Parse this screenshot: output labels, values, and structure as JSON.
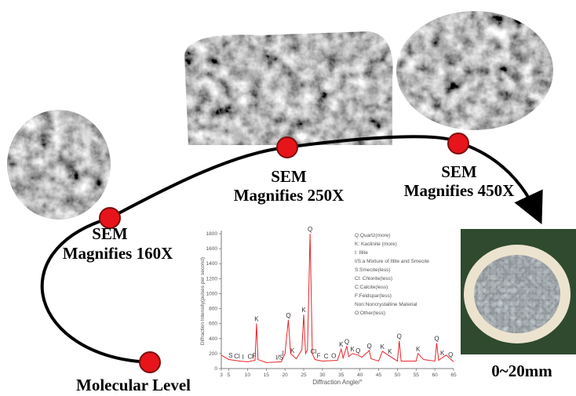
{
  "labels": {
    "sem160": {
      "line1": "SEM",
      "line2": "Magnifies 160X"
    },
    "sem250": {
      "line1": "SEM",
      "line2": "Magnifies 250X"
    },
    "sem450": {
      "line1": "SEM",
      "line2": "Magnifies 450X"
    },
    "molecular": "Molecular Level",
    "size": "0~20mm"
  },
  "xrd": {
    "type": "line",
    "y_label": "Diffraction Intensity(pulses per second)",
    "x_label": "Diffraction Angle/°",
    "xlim": [
      3,
      65
    ],
    "ylim": [
      0,
      1800
    ],
    "xticks": [
      3,
      5,
      10,
      15,
      20,
      25,
      30,
      35,
      40,
      45,
      50,
      55,
      60,
      65
    ],
    "yticks": [
      0,
      200,
      400,
      600,
      800,
      1000,
      1200,
      1400,
      1600,
      1800
    ],
    "color": "#e8252b",
    "line": {
      "x": [
        3,
        5,
        8,
        10,
        12,
        12.4,
        12.8,
        15,
        19,
        20,
        20.9,
        21.5,
        23,
        24.5,
        25,
        25.5,
        26,
        26.7,
        27.3,
        28,
        30,
        34,
        35,
        35.5,
        36.5,
        37,
        38,
        39.5,
        40.5,
        42.5,
        43,
        45,
        46,
        50,
        50.5,
        51,
        55,
        55.5,
        57,
        60,
        60.5,
        61,
        63,
        65
      ],
      "y": [
        180,
        120,
        100,
        90,
        110,
        600,
        120,
        80,
        90,
        200,
        650,
        200,
        130,
        250,
        720,
        200,
        250,
        1800,
        200,
        120,
        100,
        110,
        260,
        140,
        300,
        160,
        200,
        180,
        150,
        240,
        130,
        100,
        230,
        100,
        370,
        100,
        100,
        200,
        120,
        100,
        340,
        110,
        180,
        90
      ]
    },
    "peaks": [
      {
        "label": "S",
        "x": 5.5
      },
      {
        "label": "Cl",
        "x": 7.2
      },
      {
        "label": "I",
        "x": 8.8
      },
      {
        "label": "Cl",
        "x": 10.8
      },
      {
        "label": "F",
        "x": 11.8
      },
      {
        "label": "K",
        "x": 12.4
      },
      {
        "label": "I/S",
        "x": 18.5
      },
      {
        "label": "I",
        "x": 19.5
      },
      {
        "label": "Q",
        "x": 20.9
      },
      {
        "label": "K",
        "x": 22
      },
      {
        "label": "K",
        "x": 25
      },
      {
        "label": "Q",
        "x": 26.7
      },
      {
        "label": "Cl",
        "x": 27.6
      },
      {
        "label": "F",
        "x": 29
      },
      {
        "label": "C",
        "x": 31
      },
      {
        "label": "O",
        "x": 33
      },
      {
        "label": "K",
        "x": 35
      },
      {
        "label": "Q",
        "x": 36.5
      },
      {
        "label": "K",
        "x": 38
      },
      {
        "label": "Q",
        "x": 39.5
      },
      {
        "label": "Q",
        "x": 42.5
      },
      {
        "label": "K",
        "x": 46
      },
      {
        "label": "K",
        "x": 48
      },
      {
        "label": "Q",
        "x": 50.5
      },
      {
        "label": "K",
        "x": 55.5
      },
      {
        "label": "Q",
        "x": 60.5
      },
      {
        "label": "K",
        "x": 62
      },
      {
        "label": "Q",
        "x": 64.2
      }
    ],
    "legend": [
      "Q:Quartz(more)",
      "K: Kaolinite (more)",
      "I: Illite",
      "I/S:a Mixture of Illite and Smecite",
      "S:Smecite(less)",
      "Cl: Chlorite(less)",
      "C:Calcite(less)",
      "F:Feldspar(less)",
      "Non:Noncrystalline Material",
      "O:Other(less)"
    ]
  }
}
